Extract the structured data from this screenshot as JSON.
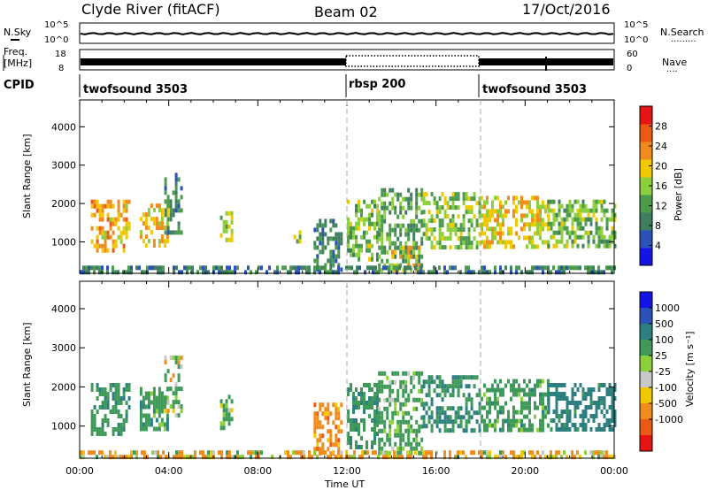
{
  "header": {
    "station": "Clyde River (fitACF)",
    "beam": "Beam 02",
    "date": "17/Oct/2016"
  },
  "side_labels": {
    "nsky": "N.Sky",
    "nsearch": "N.Search",
    "nsearch_dots": "·········",
    "freq_line1": "Freq.",
    "freq_line2": "[MHz]",
    "nave": "Nave",
    "nave_dots": "····",
    "cpid": "CPID"
  },
  "noise_axis": {
    "left_top": "10^5",
    "left_bottom": "10^0",
    "right_top": "10^5",
    "right_bottom": "10^0"
  },
  "freq_axis": {
    "top": "18",
    "bottom": "8",
    "nave_top": "60",
    "nave_bottom": "0"
  },
  "cpid_segments": [
    {
      "label": "twofsound 3503",
      "start_h": 0
    },
    {
      "label": "rbsp 200",
      "start_h": 12
    },
    {
      "label": "twofsound 3503",
      "start_h": 18
    }
  ],
  "colors": {
    "power": [
      "#1414e6",
      "#2a52b8",
      "#3f7f5f",
      "#4c9a4c",
      "#8ccf3c",
      "#f0c800",
      "#f08c1e",
      "#eb5a14",
      "#e61414"
    ],
    "velocity": [
      "#e61414",
      "#eb5a14",
      "#f08c1e",
      "#f0c800",
      "#c8c8c8",
      "#8ccf3c",
      "#3f9a5a",
      "#2e7f7f",
      "#2a52b8",
      "#1414e6"
    ]
  },
  "chart_data": [
    {
      "type": "heatmap",
      "panel": "power",
      "ylabel": "Slant Range [km]",
      "xlabel": "",
      "x_ticks": [
        "00:00",
        "04:00",
        "08:00",
        "12:00",
        "16:00",
        "20:00",
        "00:00"
      ],
      "x_range_hours": [
        0,
        24
      ],
      "y_ticks": [
        1000,
        2000,
        3000,
        4000
      ],
      "ylim": [
        180,
        4700
      ],
      "colorbar_label": "Power [dB]",
      "colorbar_ticks": [
        "4",
        "8",
        "12",
        "16",
        "20",
        "24",
        "28"
      ],
      "clim": [
        0,
        32
      ],
      "regions": [
        {
          "t": [
            0.5,
            2.2
          ],
          "r": [
            800,
            2100
          ],
          "v": 22
        },
        {
          "t": [
            2.7,
            3.9
          ],
          "r": [
            900,
            2000
          ],
          "v": 21
        },
        {
          "t": [
            3.8,
            4.6
          ],
          "r": [
            1300,
            2800
          ],
          "v": 9
        },
        {
          "t": [
            6.3,
            6.8
          ],
          "r": [
            1000,
            1800
          ],
          "v": 17
        },
        {
          "t": [
            9.6,
            9.9
          ],
          "r": [
            1000,
            1300
          ],
          "v": 16
        },
        {
          "t": [
            10.5,
            11.8
          ],
          "r": [
            300,
            1600
          ],
          "v": 9
        },
        {
          "t": [
            12.0,
            13.4
          ],
          "r": [
            500,
            2100
          ],
          "v": 14
        },
        {
          "t": [
            13.4,
            15.4
          ],
          "r": [
            300,
            2400
          ],
          "v": 12
        },
        {
          "t": [
            14.0,
            15.2
          ],
          "r": [
            300,
            900
          ],
          "v": 20
        },
        {
          "t": [
            15.4,
            18.0
          ],
          "r": [
            900,
            2300
          ],
          "v": 15
        },
        {
          "t": [
            18.0,
            21.0
          ],
          "r": [
            900,
            2200
          ],
          "v": 20
        },
        {
          "t": [
            21.0,
            24.0
          ],
          "r": [
            900,
            2100
          ],
          "v": 14
        },
        {
          "t": [
            0.0,
            24.0
          ],
          "r": [
            180,
            380
          ],
          "v": 8
        }
      ]
    },
    {
      "type": "heatmap",
      "panel": "velocity",
      "ylabel": "Slant Range [km]",
      "xlabel": "Time UT",
      "x_ticks": [
        "00:00",
        "04:00",
        "08:00",
        "12:00",
        "16:00",
        "20:00",
        "00:00"
      ],
      "x_range_hours": [
        0,
        24
      ],
      "y_ticks": [
        1000,
        2000,
        3000,
        4000
      ],
      "ylim": [
        180,
        4700
      ],
      "colorbar_label": "Velocity [m s⁻¹]",
      "colorbar_ticks": [
        "1000",
        "500",
        "100",
        "25",
        "-25",
        "-100",
        "-500",
        "-1000"
      ],
      "regions": [
        {
          "t": [
            0.5,
            2.2
          ],
          "r": [
            800,
            2100
          ],
          "v": 350
        },
        {
          "t": [
            2.7,
            3.9
          ],
          "r": [
            900,
            2000
          ],
          "v": 300
        },
        {
          "t": [
            3.8,
            4.6
          ],
          "r": [
            1300,
            2800
          ],
          "v": 60
        },
        {
          "t": [
            6.3,
            6.8
          ],
          "r": [
            1000,
            1800
          ],
          "v": 150
        },
        {
          "t": [
            10.5,
            11.8
          ],
          "r": [
            300,
            1600
          ],
          "v": -300
        },
        {
          "t": [
            12.0,
            13.4
          ],
          "r": [
            500,
            2100
          ],
          "v": 400
        },
        {
          "t": [
            13.4,
            15.4
          ],
          "r": [
            300,
            2400
          ],
          "v": 250
        },
        {
          "t": [
            15.4,
            18.0
          ],
          "r": [
            900,
            2300
          ],
          "v": 500
        },
        {
          "t": [
            18.0,
            21.0
          ],
          "r": [
            900,
            2200
          ],
          "v": 300
        },
        {
          "t": [
            21.0,
            24.0
          ],
          "r": [
            900,
            2100
          ],
          "v": 700
        },
        {
          "t": [
            0.0,
            24.0
          ],
          "r": [
            180,
            380
          ],
          "v": -120
        }
      ]
    }
  ]
}
